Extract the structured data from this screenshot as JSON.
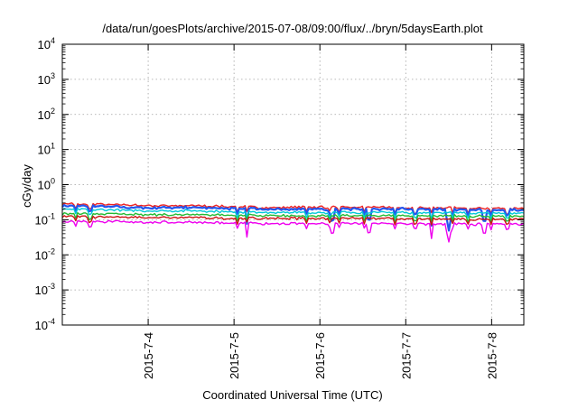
{
  "chart_data": {
    "type": "line",
    "title": "/data/run/goesPlots/archive/2015-07-08/09:00/flux/../bryn/5daysEarth.plot",
    "xlabel": "Coordinated Universal Time (UTC)",
    "ylabel": "cGy/day",
    "y_scale": "log",
    "ylim": [
      0.0001,
      10000
    ],
    "y_ticks": [
      {
        "value": 0.0001,
        "base": "10",
        "exp": "-4"
      },
      {
        "value": 0.001,
        "base": "10",
        "exp": "-3"
      },
      {
        "value": 0.01,
        "base": "10",
        "exp": "-2"
      },
      {
        "value": 0.1,
        "base": "10",
        "exp": "-1"
      },
      {
        "value": 1,
        "base": "10",
        "exp": "0"
      },
      {
        "value": 10,
        "base": "10",
        "exp": "1"
      },
      {
        "value": 100,
        "base": "10",
        "exp": "2"
      },
      {
        "value": 1000,
        "base": "10",
        "exp": "3"
      },
      {
        "value": 10000,
        "base": "10",
        "exp": "4"
      }
    ],
    "xlim": [
      "2015-07-03 00:00",
      "2015-07-08 09:00"
    ],
    "x_ticks": [
      "2015-7-4",
      "2015-7-5",
      "2015-7-6",
      "2015-7-7",
      "2015-7-8"
    ],
    "grid": true,
    "series": [
      {
        "color": "#ee2222",
        "values": [
          0.29,
          0.27,
          0.25,
          0.25,
          0.24,
          0.22,
          0.23,
          0.23,
          0.22,
          0.22,
          0.21,
          0.21
        ]
      },
      {
        "color": "#2255ee",
        "values": [
          0.25,
          0.24,
          0.22,
          0.22,
          0.21,
          0.2,
          0.2,
          0.2,
          0.2,
          0.2,
          0.19,
          0.19
        ]
      },
      {
        "color": "#00c8d8",
        "values": [
          0.2,
          0.19,
          0.18,
          0.18,
          0.17,
          0.16,
          0.16,
          0.16,
          0.16,
          0.16,
          0.155,
          0.155
        ]
      },
      {
        "color": "#22bb33",
        "values": [
          0.15,
          0.145,
          0.14,
          0.14,
          0.135,
          0.13,
          0.13,
          0.13,
          0.13,
          0.13,
          0.125,
          0.125
        ]
      },
      {
        "color": "#cc1111",
        "values": [
          0.125,
          0.12,
          0.115,
          0.115,
          0.11,
          0.11,
          0.11,
          0.11,
          0.105,
          0.105,
          0.105,
          0.105
        ]
      },
      {
        "color": "#ee00ee",
        "values": [
          0.09,
          0.088,
          0.085,
          0.085,
          0.08,
          0.078,
          0.078,
          0.078,
          0.077,
          0.076,
          0.075,
          0.075
        ]
      }
    ]
  }
}
